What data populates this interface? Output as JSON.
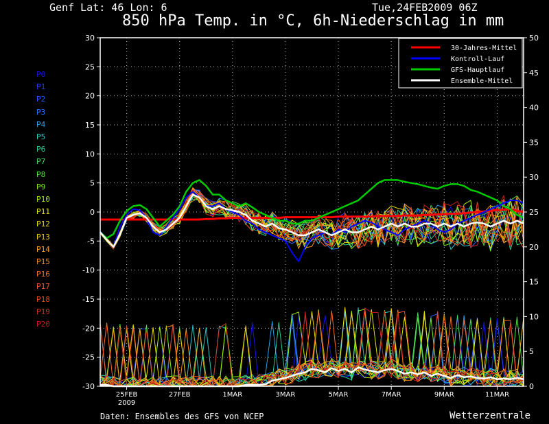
{
  "header": {
    "location": "Genf  Lat: 46 Lon: 6",
    "timestamp": "Tue,24FEB2009 06Z",
    "title": "850 hPa Temp. in °C, 6h-Niederschlag in mm"
  },
  "footer": {
    "source": "Daten: Ensembles des GFS von NCEP",
    "brand": "Wetterzentrale"
  },
  "colors": {
    "background": "#000000",
    "grid": "#bbbbbb",
    "climate": "#ff0000",
    "control": "#0000ff",
    "main_run": "#00cc00",
    "ensemble_mean": "#ffffff"
  },
  "members": [
    {
      "label": "P0",
      "color": "#1414e6"
    },
    {
      "label": "P1",
      "color": "#1e3cff"
    },
    {
      "label": "P2",
      "color": "#1e5aff"
    },
    {
      "label": "P3",
      "color": "#2878ff"
    },
    {
      "label": "P4",
      "color": "#28a0e6"
    },
    {
      "label": "P5",
      "color": "#28c8c8"
    },
    {
      "label": "P6",
      "color": "#28d296"
    },
    {
      "label": "P7",
      "color": "#3cdc64"
    },
    {
      "label": "P8",
      "color": "#50e63c"
    },
    {
      "label": "P9",
      "color": "#78f028"
    },
    {
      "label": "P10",
      "color": "#a0f000"
    },
    {
      "label": "P11",
      "color": "#e6e600"
    },
    {
      "label": "P12",
      "color": "#f0dc00"
    },
    {
      "label": "P13",
      "color": "#f5c800"
    },
    {
      "label": "P14",
      "color": "#faa01e"
    },
    {
      "label": "P15",
      "color": "#fa8c1e"
    },
    {
      "label": "P16",
      "color": "#fa6e28"
    },
    {
      "label": "P17",
      "color": "#f05a28"
    },
    {
      "label": "P18",
      "color": "#e6461e"
    },
    {
      "label": "P19",
      "color": "#d23214"
    },
    {
      "label": "P20",
      "color": "#c81e1e"
    }
  ],
  "chart_data": {
    "type": "line",
    "x_ticks": [
      "25FEB",
      "27FEB",
      "1MAR",
      "3MAR",
      "5MAR",
      "7MAR",
      "9MAR",
      "11MAR"
    ],
    "x_sub_tick": "2009",
    "x_start": "2009-02-24 06Z",
    "x_step_hours": 6,
    "y_left": {
      "label": "",
      "range": [
        -30,
        30
      ],
      "ticks": [
        30,
        25,
        20,
        15,
        10,
        5,
        0,
        -5,
        -10,
        -15,
        -20,
        -25,
        -30
      ]
    },
    "y_right": {
      "label": "",
      "range": [
        0,
        50
      ],
      "ticks": [
        50,
        45,
        40,
        35,
        30,
        25,
        20,
        15,
        10,
        5,
        0
      ]
    },
    "grid": true,
    "legend_position": "top-right",
    "legend": [
      {
        "label": "30-Jahres-Mittel",
        "color": "#ff0000"
      },
      {
        "label": "Kontroll-Lauf",
        "color": "#0000ff"
      },
      {
        "label": "GFS-Hauptlauf",
        "color": "#00cc00"
      },
      {
        "label": "Ensemble-Mittel",
        "color": "#ffffff"
      }
    ],
    "series": [
      {
        "name": "30-Jahres-Mittel",
        "axis": "temp",
        "values": [
          -1.3,
          -1.3,
          -1.3,
          -1.3,
          -1.3,
          -1.3,
          -1.3,
          -1.3,
          -1.3,
          -1.3,
          -1.3,
          -1.3,
          -1.3,
          -1.3,
          -1.3,
          -1.3,
          -1.2,
          -1.2,
          -1.1,
          -1.1,
          -1.0,
          -1.0,
          -1.0,
          -1.0,
          -1.0,
          -1.0,
          -1.0,
          -1.0,
          -0.9,
          -0.9,
          -0.9,
          -0.9,
          -0.9,
          -0.9,
          -0.9,
          -0.9,
          -0.8,
          -0.8,
          -0.8,
          -0.8,
          -0.8,
          -0.8,
          -0.7,
          -0.7,
          -0.7,
          -0.7,
          -0.6,
          -0.6,
          -0.6,
          -0.5,
          -0.5,
          -0.4,
          -0.4,
          -0.3,
          -0.3,
          -0.2,
          -0.1,
          0.0,
          0.1,
          0.2,
          0.3,
          0.4,
          0.5,
          0.2,
          0.0
        ]
      },
      {
        "name": "GFS-Hauptlauf",
        "axis": "temp",
        "values": [
          -3.5,
          -4.5,
          -3.8,
          -1.5,
          0.2,
          1.0,
          1.2,
          0.5,
          -1.0,
          -2.5,
          -1.5,
          -0.5,
          1.0,
          3.5,
          5.0,
          5.5,
          4.5,
          3.0,
          3.0,
          2.0,
          1.5,
          1.0,
          1.5,
          0.8,
          0.0,
          -0.5,
          -1.0,
          -1.5,
          -1.5,
          -2.0,
          -2.0,
          -1.5,
          -1.5,
          -1.0,
          -0.5,
          0.0,
          0.5,
          1.0,
          1.5,
          2.0,
          3.0,
          4.0,
          5.0,
          5.5,
          5.5,
          5.5,
          5.2,
          5.0,
          4.8,
          4.5,
          4.2,
          4.0,
          4.5,
          4.8,
          4.8,
          4.5,
          3.8,
          3.5,
          3.0,
          2.5,
          2.0,
          1.0,
          0.5,
          -0.5,
          -1.0
        ]
      },
      {
        "name": "Kontroll-Lauf",
        "axis": "temp",
        "values": [
          -3.5,
          -4.8,
          -6.0,
          -2.5,
          -0.5,
          0.5,
          0.3,
          -1.0,
          -3.5,
          -4.0,
          -2.5,
          -1.0,
          0.5,
          2.5,
          3.5,
          2.5,
          1.0,
          1.0,
          1.5,
          0.5,
          0.0,
          -0.5,
          -1.5,
          -2.0,
          -3.0,
          -3.5,
          -4.0,
          -4.5,
          -5.0,
          -7.0,
          -8.5,
          -6.0,
          -4.5,
          -4.0,
          -3.5,
          -4.0,
          -3.0,
          -3.5,
          -2.5,
          -2.0,
          -1.5,
          -1.8,
          -2.5,
          -3.0,
          -3.5,
          -4.0,
          -3.0,
          -2.5,
          -2.0,
          -1.5,
          -2.0,
          -3.0,
          -3.5,
          -3.0,
          -2.0,
          -1.5,
          -1.0,
          -0.5,
          0.0,
          0.5,
          1.0,
          1.5,
          2.0,
          2.0,
          1.5
        ]
      },
      {
        "name": "Ensemble-Mittel",
        "axis": "temp",
        "values": [
          -3.5,
          -4.8,
          -6.0,
          -3.8,
          -1.0,
          -0.5,
          -0.2,
          -1.0,
          -2.5,
          -3.5,
          -3.0,
          -2.0,
          -1.0,
          1.0,
          3.0,
          2.5,
          1.0,
          0.5,
          1.0,
          0.5,
          0.3,
          0.0,
          -0.5,
          -1.5,
          -2.0,
          -2.5,
          -2.0,
          -2.8,
          -3.0,
          -3.5,
          -4.0,
          -4.0,
          -3.5,
          -3.0,
          -3.5,
          -4.0,
          -3.5,
          -3.0,
          -3.5,
          -3.5,
          -3.0,
          -2.5,
          -3.0,
          -2.5,
          -2.0,
          -2.5,
          -2.0,
          -2.5,
          -2.5,
          -2.0,
          -2.0,
          -2.5,
          -2.0,
          -2.5,
          -2.0,
          -2.5,
          -2.0,
          -1.8,
          -2.0,
          -2.5,
          -2.0,
          -1.5,
          -2.0,
          -1.5,
          -2.0
        ]
      },
      {
        "name": "Ensemble-Mittel Niederschlag",
        "axis": "precip",
        "values": [
          0.2,
          0.2,
          0.0,
          0.0,
          0.0,
          0.0,
          0.0,
          0.0,
          0.0,
          0.0,
          0.0,
          0.0,
          0.0,
          0.0,
          0.0,
          0.0,
          0.0,
          0.0,
          0.0,
          0.0,
          0.0,
          0.0,
          0.2,
          0.2,
          0.2,
          0.3,
          0.8,
          1.0,
          1.2,
          1.5,
          1.8,
          2.0,
          2.5,
          2.3,
          2.0,
          2.6,
          2.2,
          2.5,
          2.0,
          2.7,
          2.4,
          2.2,
          2.0,
          2.3,
          2.5,
          2.2,
          1.8,
          2.0,
          1.7,
          2.0,
          1.5,
          1.8,
          1.5,
          1.2,
          1.6,
          1.3,
          1.4,
          1.2,
          1.1,
          1.3,
          1.0,
          1.1,
          1.0,
          1.2,
          1.0
        ]
      }
    ]
  }
}
